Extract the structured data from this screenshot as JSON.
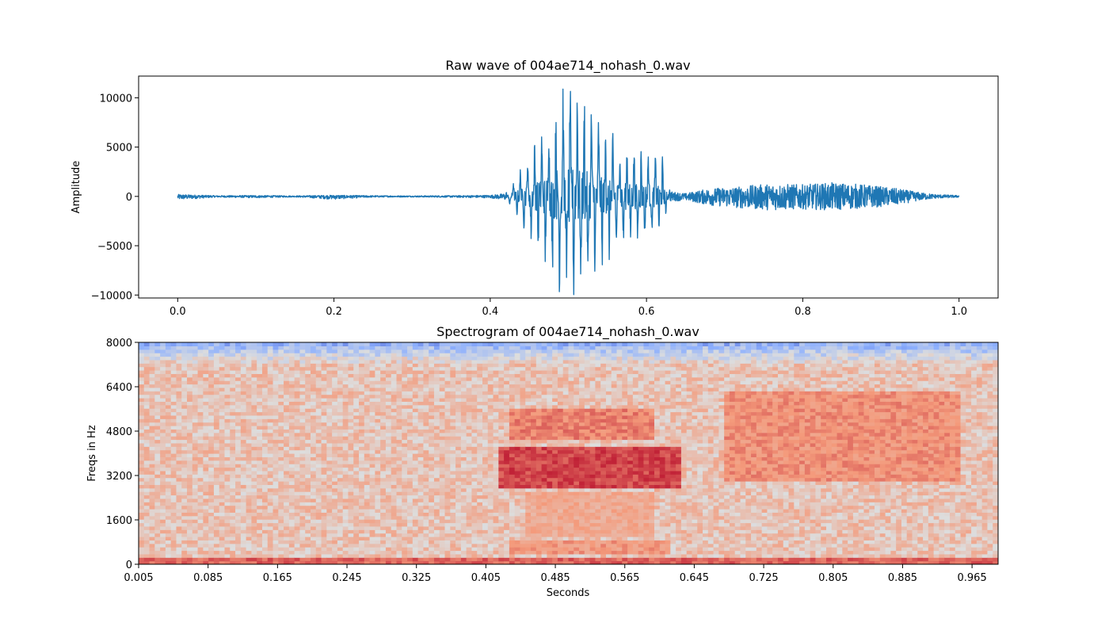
{
  "chart_data": [
    {
      "type": "line",
      "title": "Raw wave of 004ae714_nohash_0.wav",
      "xlabel": "",
      "ylabel": "Amplitude",
      "xlim": [
        -0.05,
        1.05
      ],
      "ylim": [
        -10300,
        12200
      ],
      "xticks": [
        0.0,
        0.2,
        0.4,
        0.6,
        0.8,
        1.0
      ],
      "xtick_labels": [
        "0.0",
        "0.2",
        "0.4",
        "0.6",
        "0.8",
        "1.0"
      ],
      "yticks": [
        -10000,
        -5000,
        0,
        5000,
        10000
      ],
      "ytick_labels": [
        "−10000",
        "−5000",
        "0",
        "5000",
        "10000"
      ],
      "color": "#1f77b4",
      "grid": false,
      "series": [
        {
          "x": [
            0.0,
            0.05,
            0.1,
            0.15,
            0.2,
            0.25,
            0.3,
            0.35,
            0.4,
            0.42,
            0.44,
            0.46,
            0.48,
            0.5,
            0.52,
            0.54,
            0.56,
            0.58,
            0.6,
            0.62,
            0.63,
            0.65,
            0.68,
            0.72,
            0.76,
            0.8,
            0.84,
            0.88,
            0.92,
            0.95,
            0.97,
            1.0
          ],
          "envelope_max": [
            200,
            80,
            100,
            60,
            120,
            80,
            60,
            80,
            120,
            300,
            2800,
            5300,
            8000,
            11200,
            9600,
            7200,
            5200,
            4700,
            4300,
            3600,
            500,
            300,
            800,
            1000,
            1300,
            1200,
            1400,
            1200,
            800,
            400,
            200,
            100
          ],
          "envelope_min": [
            -350,
            -80,
            -150,
            -60,
            -300,
            -80,
            -60,
            -100,
            -150,
            -400,
            -2500,
            -4900,
            -7800,
            -9600,
            -8700,
            -6800,
            -5100,
            -4200,
            -3800,
            -3100,
            -500,
            -400,
            -900,
            -1200,
            -1400,
            -1300,
            -1400,
            -1200,
            -900,
            -400,
            -200,
            -100
          ]
        }
      ]
    },
    {
      "type": "heatmap",
      "title": "Spectrogram of 004ae714_nohash_0.wav",
      "xlabel": "Seconds",
      "ylabel": "Freqs in Hz",
      "xlim": [
        0.005,
        0.995
      ],
      "ylim": [
        0,
        8000
      ],
      "xticks": [
        0.005,
        0.085,
        0.165,
        0.245,
        0.325,
        0.405,
        0.485,
        0.565,
        0.645,
        0.725,
        0.805,
        0.885,
        0.965
      ],
      "xtick_labels": [
        "0.005",
        "0.085",
        "0.165",
        "0.245",
        "0.325",
        "0.405",
        "0.485",
        "0.565",
        "0.645",
        "0.725",
        "0.805",
        "0.885",
        "0.965"
      ],
      "yticks": [
        0,
        1600,
        3200,
        4800,
        6400,
        8000
      ],
      "ytick_labels": [
        "0",
        "1600",
        "3200",
        "4800",
        "6400",
        "8000"
      ],
      "colormap": "coolwarm",
      "grid": false,
      "bands": [
        {
          "t": [
            0.42,
            0.63
          ],
          "f": [
            2800,
            4300
          ],
          "level": 0.95
        },
        {
          "t": [
            0.43,
            0.6
          ],
          "f": [
            4500,
            5600
          ],
          "level": 0.85
        },
        {
          "t": [
            0.43,
            0.62
          ],
          "f": [
            400,
            900
          ],
          "level": 0.8
        },
        {
          "t": [
            0.45,
            0.6
          ],
          "f": [
            1000,
            2600
          ],
          "level": 0.75
        },
        {
          "t": [
            0.68,
            0.95
          ],
          "f": [
            3000,
            6300
          ],
          "level": 0.82
        },
        {
          "t": [
            0.0,
            1.0
          ],
          "f": [
            0,
            200
          ],
          "level": 0.9
        }
      ]
    }
  ]
}
